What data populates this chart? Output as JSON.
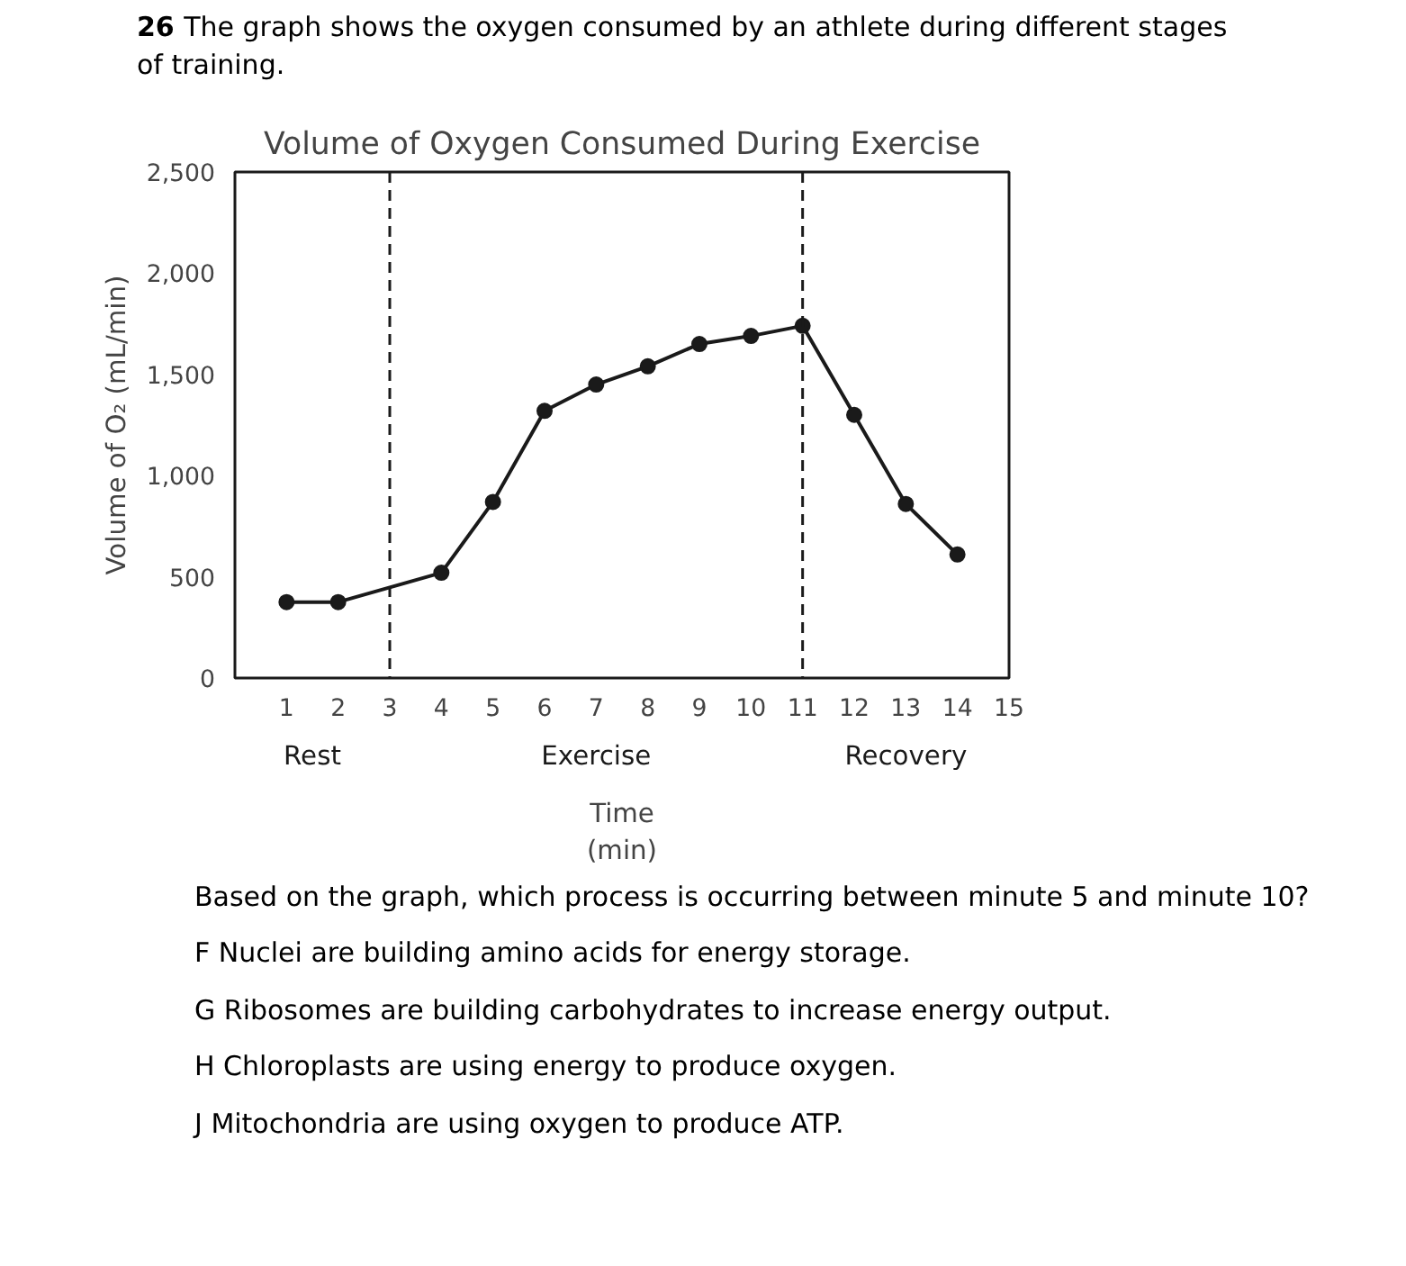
{
  "chart_data": {
    "type": "line",
    "title": "Volume of Oxygen Consumed During Exercise",
    "xlabel": "Time\n(min)",
    "ylabel": "Volume of O₂ (mL/min)",
    "x": [
      1,
      2,
      4,
      5,
      6,
      7,
      8,
      9,
      10,
      11,
      12,
      13,
      14
    ],
    "series": [
      {
        "color": "#1a1a1a",
        "values": [
          375,
          375,
          520,
          870,
          1320,
          1450,
          1540,
          1650,
          1690,
          1740,
          1300,
          860,
          610
        ]
      }
    ],
    "xlim": [
      0,
      15
    ],
    "xticks": [
      1,
      2,
      3,
      4,
      5,
      6,
      7,
      8,
      9,
      10,
      11,
      12,
      13,
      14,
      15
    ],
    "ylim": [
      0,
      2500
    ],
    "yticks": [
      0,
      500,
      {
        "value": 1000,
        "label": "1,000"
      },
      {
        "value": 1500,
        "label": "1,500"
      },
      {
        "value": 2000,
        "label": "2,000"
      },
      {
        "value": 2500,
        "label": "2,500"
      }
    ],
    "ref_lines": [
      {
        "axis": "x",
        "value": 3,
        "line_style": "dashed",
        "color": "#1a1a1a"
      },
      {
        "axis": "x",
        "value": 11,
        "line_style": "dashed",
        "color": "#1a1a1a"
      }
    ],
    "grid": false,
    "marker": "circle",
    "line_style": "solid",
    "annotations": [
      "26 The graph shows the oxygen consumed by an athlete during different stages of training.",
      "Rest",
      "Exercise",
      "Recovery",
      "Based on the graph, which process is occurring between minute 5 and minute 10?",
      "F  Nuclei are building amino acids for energy storage.",
      "G  Ribosomes are building carbohydrates to increase energy output.",
      "H  Chloroplasts are using energy to produce oxygen.",
      "J  Mitochondria are using oxygen to produce ATP."
    ]
  }
}
